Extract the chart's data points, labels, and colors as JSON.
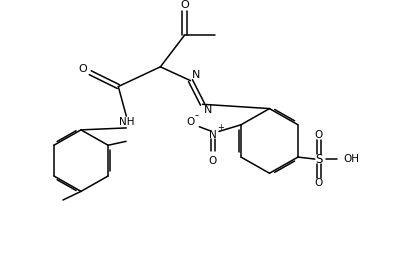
{
  "bg_color": "#ffffff",
  "line_color": "#000000",
  "figsize": [
    4.01,
    2.56
  ],
  "dpi": 100,
  "lw": 1.1,
  "xlim": [
    0,
    10
  ],
  "ylim": [
    0,
    6.4
  ]
}
